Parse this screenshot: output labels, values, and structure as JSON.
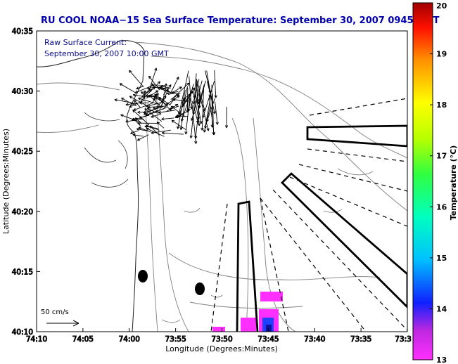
{
  "chart_data": {
    "type": "map",
    "title": "RU COOL  NOAA−15  Sea Surface Temperature:  September 30, 2007 0945 GMT",
    "annotation_lines": [
      "Raw Surface Current:",
      "September 30, 2007 10:00 GMT"
    ],
    "xlabel": "Longitude (Degrees:Minutes)",
    "ylabel": "Latitude (Degrees:Minutes)",
    "x_ticks": [
      "74:10",
      "74:05",
      "74:00",
      "73:55",
      "73:50",
      "73:45",
      "73:40",
      "73:35",
      "73:3"
    ],
    "y_ticks": [
      "40:35",
      "40:30",
      "40:25",
      "40:20",
      "40:15",
      "40:10"
    ],
    "colorbar": {
      "label": "Temperature (°C)",
      "ticks": [
        "20",
        "19",
        "18",
        "17",
        "16",
        "15",
        "14",
        "13"
      ],
      "range": [
        13,
        20
      ]
    },
    "scale_label": "50 cm/s",
    "grid": false
  }
}
